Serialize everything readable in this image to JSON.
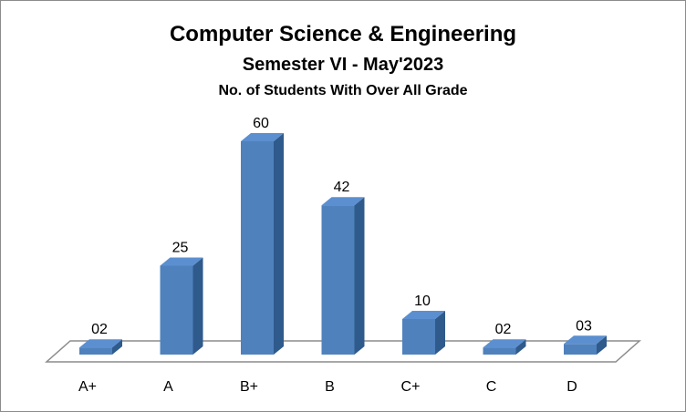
{
  "chart_data": {
    "type": "bar",
    "title": "Computer Science & Engineering",
    "subtitle": "Semester VI - May'2023",
    "subtitle2": "No. of Students With Over All Grade",
    "categories": [
      "A+",
      "A",
      "B+",
      "B",
      "C+",
      "C",
      "D"
    ],
    "values": [
      2,
      25,
      60,
      42,
      10,
      2,
      3
    ],
    "data_labels": [
      "02",
      "25",
      "60",
      "42",
      "10",
      "02",
      "03"
    ],
    "xlabel": "",
    "ylabel": "",
    "ylim": [
      0,
      60
    ],
    "grid": false,
    "legend": "none",
    "style": "3d-column"
  },
  "colors": {
    "bar_front": "#4f81bd",
    "bar_side": "#2f5a8c",
    "bar_top": "#5b8fd0",
    "floor_stroke": "#8c8c8c"
  }
}
